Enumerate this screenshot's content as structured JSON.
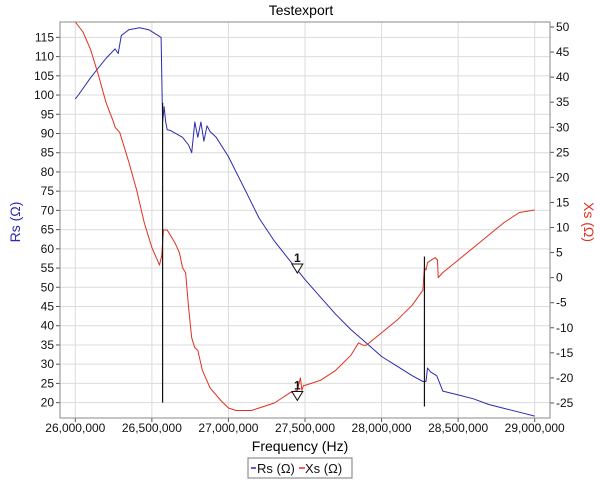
{
  "chart_data": {
    "type": "line",
    "title": "Testexport",
    "xlabel": "Frequency (Hz)",
    "ylabel_left": "Rs (Ω)",
    "ylabel_right": "Xs (Ω)",
    "xlim": [
      25900000,
      29100000
    ],
    "ylim_left": [
      16,
      119
    ],
    "ylim_right": [
      -28,
      51
    ],
    "x_ticks": [
      26000000,
      26500000,
      27000000,
      27500000,
      28000000,
      28500000,
      29000000
    ],
    "x_tick_labels": [
      "26,000,000",
      "26,500,000",
      "27,000,000",
      "27,500,000",
      "28,000,000",
      "28,500,000",
      "29,000,000"
    ],
    "y_left_ticks": [
      20,
      25,
      30,
      35,
      40,
      45,
      50,
      55,
      60,
      65,
      70,
      75,
      80,
      85,
      90,
      95,
      100,
      105,
      110,
      115
    ],
    "y_right_ticks": [
      -25,
      -20,
      -15,
      -10,
      -5,
      0,
      5,
      10,
      15,
      20,
      25,
      30,
      35,
      40,
      45,
      50
    ],
    "grid": true,
    "legend_position": "bottom-center",
    "colors": {
      "rs": "#2b2bb0",
      "xs": "#e03020",
      "markers": "#111111",
      "grid": "#dcdcdc"
    },
    "series": [
      {
        "name": "Rs (Ω)",
        "axis": "left",
        "x": [
          26000000,
          26020000,
          26100000,
          26200000,
          26260000,
          26280000,
          26300000,
          26350000,
          26420000,
          26480000,
          26560000,
          26570000,
          26575000,
          26580000,
          26590000,
          26600000,
          26620000,
          26700000,
          26740000,
          26760000,
          26780000,
          26800000,
          26820000,
          26840000,
          26860000,
          26880000,
          26920000,
          27000000,
          27100000,
          27200000,
          27300000,
          27400000,
          27500000,
          27600000,
          27700000,
          27800000,
          27900000,
          28000000,
          28100000,
          28200000,
          28270000,
          28290000,
          28300000,
          28320000,
          28360000,
          28380000,
          28400000,
          28500000,
          28600000,
          28700000,
          28800000,
          28900000,
          29000000
        ],
        "values": [
          99,
          100,
          104.5,
          109.5,
          112,
          110.8,
          115.5,
          117,
          117.5,
          117,
          115,
          93,
          95,
          97,
          93,
          91,
          90.8,
          89,
          87,
          85,
          93,
          89,
          93,
          88,
          92,
          90.5,
          89,
          84,
          76,
          68,
          62,
          57,
          52,
          47.5,
          43,
          39,
          35.5,
          32,
          29.5,
          27,
          25.5,
          25.5,
          29,
          28,
          27,
          25,
          23,
          22,
          21,
          19.5,
          18.5,
          17.5,
          16.5
        ]
      },
      {
        "name": "Xs (Ω)",
        "axis": "right",
        "x": [
          26000000,
          26050000,
          26100000,
          26150000,
          26200000,
          26250000,
          26260000,
          26290000,
          26350000,
          26400000,
          26450000,
          26500000,
          26550000,
          26565000,
          26575000,
          26600000,
          26650000,
          26680000,
          26700000,
          26720000,
          26740000,
          26760000,
          26780000,
          26800000,
          26830000,
          26880000,
          26950000,
          27000000,
          27050000,
          27100000,
          27150000,
          27200000,
          27300000,
          27400000,
          27450000,
          27470000,
          27480000,
          27490000,
          27500000,
          27600000,
          27700000,
          27800000,
          27850000,
          27880000,
          27900000,
          28000000,
          28100000,
          28200000,
          28270000,
          28280000,
          28290000,
          28300000,
          28350000,
          28365000,
          28370000,
          28400000,
          28500000,
          28600000,
          28700000,
          28800000,
          28900000,
          29000000
        ],
        "values": [
          51,
          49,
          45.5,
          40.5,
          35,
          31,
          30,
          29,
          23,
          17.5,
          11,
          6,
          2.5,
          4.5,
          9.5,
          9.5,
          7,
          5,
          2,
          1,
          -6,
          -12,
          -14,
          -14.5,
          -18.5,
          -22,
          -24.5,
          -26,
          -26.5,
          -26.5,
          -26.5,
          -26,
          -25,
          -23,
          -22.5,
          -20,
          -22.5,
          -21.5,
          -21.5,
          -20.5,
          -18.5,
          -15.5,
          -13,
          -13.5,
          -13.5,
          -11,
          -8.5,
          -5.5,
          -2.5,
          2,
          1.5,
          3,
          4,
          3.5,
          0,
          1,
          3.5,
          6,
          8.5,
          11,
          13,
          13.5
        ]
      }
    ],
    "vertical_markers": [
      {
        "x": 26570000,
        "y_left_top": 98,
        "y_left_bottom": 20
      },
      {
        "x": 28280000,
        "y_left_top": 58,
        "y_left_bottom": 19
      }
    ],
    "annotations": [
      {
        "label": "1",
        "series": "Rs (Ω)",
        "x": 27450000,
        "value": 55
      },
      {
        "label": "1",
        "series": "Xs (Ω)",
        "x": 27450000,
        "value": -23.5
      }
    ]
  }
}
